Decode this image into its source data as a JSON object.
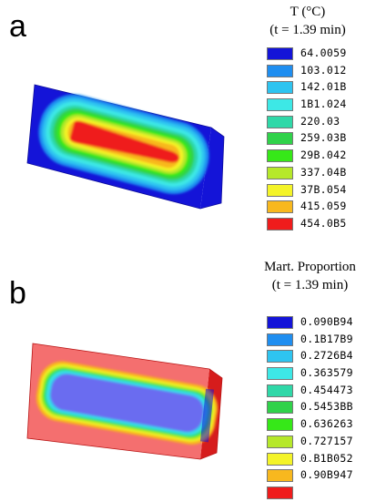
{
  "panels": [
    {
      "letter": "a",
      "title_line1": "T (°C)",
      "title_line2": "(t = 1.39 min)",
      "legend": [
        {
          "value": "64.0059",
          "color": "#1414d8"
        },
        {
          "value": "103.012",
          "color": "#1f8ef0"
        },
        {
          "value": "142.01B",
          "color": "#2ec4f0"
        },
        {
          "value": "1B1.024",
          "color": "#3de8e6"
        },
        {
          "value": "220.03",
          "color": "#2fd8a8"
        },
        {
          "value": "259.03B",
          "color": "#30d24a"
        },
        {
          "value": "29B.042",
          "color": "#36e818"
        },
        {
          "value": "337.04B",
          "color": "#b6e82a"
        },
        {
          "value": "37B.054",
          "color": "#f4f428"
        },
        {
          "value": "415.059",
          "color": "#f8b81e"
        },
        {
          "value": "454.0B5",
          "color": "#ef1c1c"
        }
      ]
    },
    {
      "letter": "b",
      "title_line1": "Mart. Proportion",
      "title_line2": "(t = 1.39 min)",
      "legend": [
        {
          "value": "0.090B94",
          "color": "#1414d8"
        },
        {
          "value": "0.1B17B9",
          "color": "#1f8ef0"
        },
        {
          "value": "0.2726B4",
          "color": "#2ec4f0"
        },
        {
          "value": "0.363579",
          "color": "#3de8e6"
        },
        {
          "value": "0.454473",
          "color": "#2fd8a8"
        },
        {
          "value": "0.5453BB",
          "color": "#30d24a"
        },
        {
          "value": "0.636263",
          "color": "#36e818"
        },
        {
          "value": "0.727157",
          "color": "#b6e82a"
        },
        {
          "value": "0.B1B052",
          "color": "#f4f428"
        },
        {
          "value": "0.90B947",
          "color": "#f8b81e"
        },
        {
          "value": "",
          "color": "#ef1c1c"
        }
      ]
    }
  ]
}
